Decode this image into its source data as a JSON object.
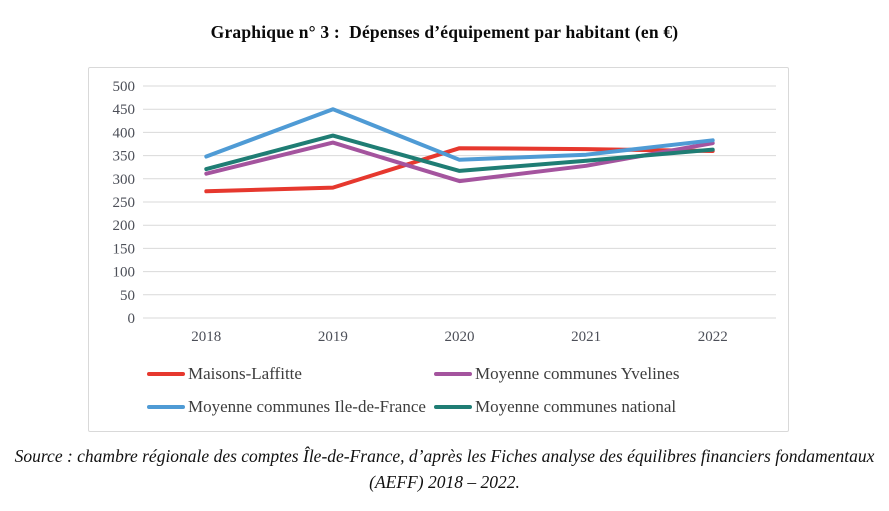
{
  "title": "Graphique n° 3 :  Dépenses d’équipement par habitant (en €)",
  "source": "Source : chambre régionale des comptes Île-de-France, d’après les Fiches analyse des équilibres financiers fondamentaux (AEFF) 2018 – 2022.",
  "colors": {
    "grid": "#d9d9d9",
    "border": "#d9d9d9",
    "axis_text": "#4c4f58",
    "legend_text": "#3d3d3d"
  },
  "chart_data": {
    "type": "line",
    "title": "Graphique n° 3 : Dépenses d’équipement par habitant (en €)",
    "xlabel": "",
    "ylabel": "",
    "categories": [
      "2018",
      "2019",
      "2020",
      "2021",
      "2022"
    ],
    "series": [
      {
        "name": "Maisons-Laffitte",
        "color": "#e6382e",
        "values": [
          273,
          281,
          366,
          364,
          360
        ]
      },
      {
        "name": "Moyenne communes Yvelines",
        "color": "#a4549e",
        "values": [
          311,
          378,
          295,
          328,
          377
        ]
      },
      {
        "name": "Moyenne communes Ile-de-France",
        "color": "#4f9bd5",
        "values": [
          348,
          450,
          341,
          352,
          383
        ]
      },
      {
        "name": "Moyenne communes national",
        "color": "#1f7d74",
        "values": [
          321,
          393,
          317,
          339,
          363
        ]
      }
    ],
    "ylim": [
      0,
      500
    ],
    "yticks": [
      0,
      50,
      100,
      150,
      200,
      250,
      300,
      350,
      400,
      450,
      500
    ],
    "grid": true,
    "legend_position": "bottom"
  }
}
